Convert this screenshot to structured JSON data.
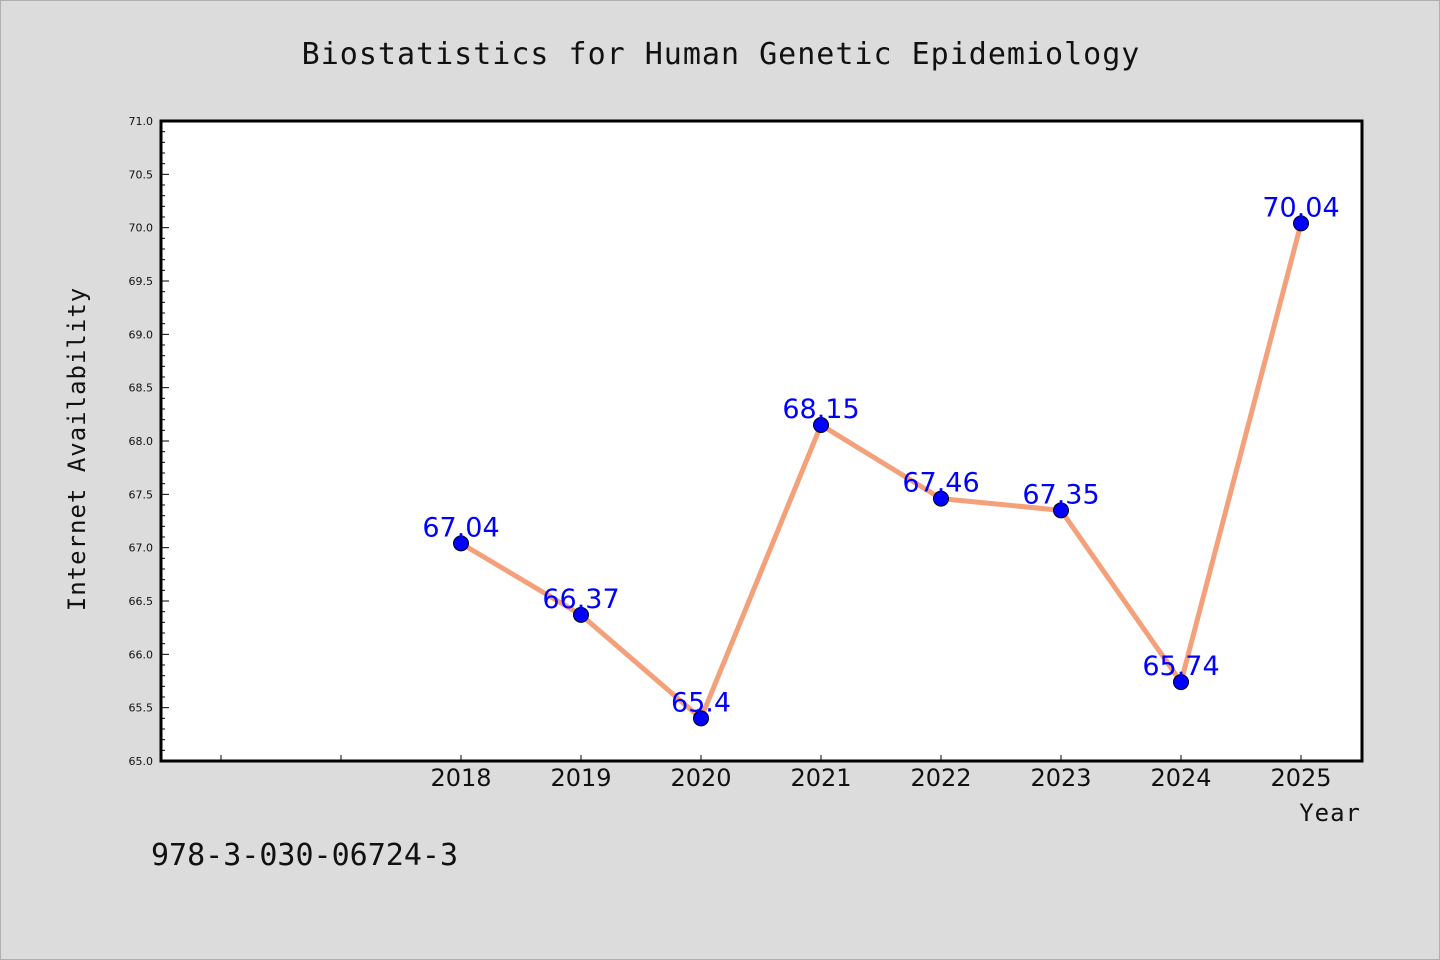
{
  "chart_data": {
    "type": "line",
    "title": "Biostatistics for Human Genetic Epidemiology",
    "xlabel": "Year",
    "ylabel": "Internet Availability",
    "categories": [
      "2018",
      "2019",
      "2020",
      "2021",
      "2022",
      "2023",
      "2024",
      "2025"
    ],
    "x_slots_before_first": 2,
    "series": [
      {
        "values": [
          67.04,
          66.37,
          65.4,
          68.15,
          67.46,
          67.35,
          65.74,
          70.04
        ],
        "data_labels": [
          "67.04",
          "66.37",
          "65.4",
          "68.15",
          "67.46",
          "67.35",
          "65.74",
          "70.04"
        ]
      }
    ],
    "ylim": [
      65.0,
      71.0
    ],
    "ytick_step": 0.5,
    "yticks": [
      "65.0",
      "65.5",
      "66.0",
      "66.5",
      "67.0",
      "67.5",
      "68.0",
      "68.5",
      "69.0",
      "69.5",
      "70.0",
      "70.5",
      "71.0"
    ],
    "grid": false,
    "legend": "none",
    "colors": {
      "line": "#f4a07a",
      "marker": "#0000ff",
      "label": "#0000ff",
      "plot_bg": "#ffffff",
      "page_bg": "#dcdcdc",
      "axis": "#000000"
    }
  },
  "footer": {
    "isbn": "978-3-030-06724-3"
  }
}
